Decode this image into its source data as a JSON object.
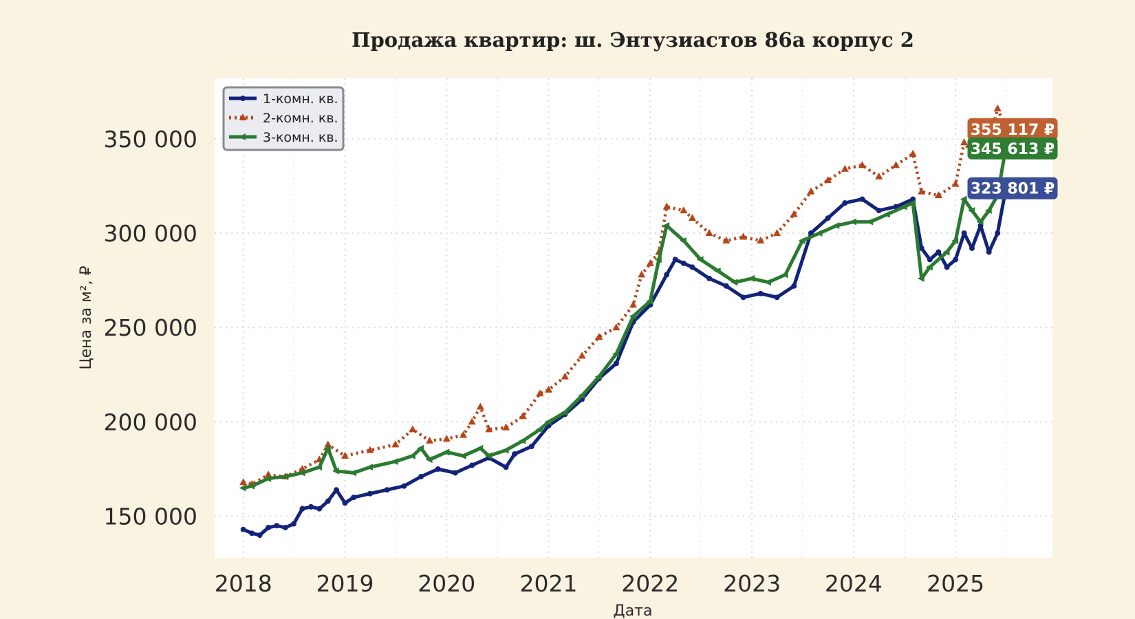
{
  "chart_data": {
    "type": "line",
    "title": "Продажа квартир: ш. Энтузиастов 86а корпус 2",
    "xlabel": "Дата",
    "ylabel": "Цена за м², ₽",
    "xlim": [
      "2017-09-20",
      "2025-12-15"
    ],
    "ylim": [
      128000,
      382000
    ],
    "x_ticks": [
      "2018",
      "2019",
      "2020",
      "2021",
      "2022",
      "2023",
      "2024",
      "2025"
    ],
    "y_ticks": [
      {
        "value": 150000,
        "label": "150 000"
      },
      {
        "value": 200000,
        "label": "200 000"
      },
      {
        "value": 250000,
        "label": "250 000"
      },
      {
        "value": 300000,
        "label": "300 000"
      },
      {
        "value": 350000,
        "label": "350 000"
      }
    ],
    "grid": true,
    "legend": "top-left",
    "series": [
      {
        "name": "1-комн. кв.",
        "color": "#13237a",
        "style": "solid",
        "marker": "dot",
        "end_label": "323 801 ₽",
        "end_label_color": "#3a4e98",
        "points": [
          [
            "2018-01-01",
            143000
          ],
          [
            "2018-02-01",
            141000
          ],
          [
            "2018-03-01",
            140000
          ],
          [
            "2018-04-01",
            144000
          ],
          [
            "2018-05-01",
            145000
          ],
          [
            "2018-06-01",
            144000
          ],
          [
            "2018-07-01",
            146000
          ],
          [
            "2018-08-01",
            154000
          ],
          [
            "2018-09-01",
            155000
          ],
          [
            "2018-10-01",
            154000
          ],
          [
            "2018-11-01",
            158000
          ],
          [
            "2018-12-01",
            164000
          ],
          [
            "2019-01-01",
            157000
          ],
          [
            "2019-02-01",
            160000
          ],
          [
            "2019-04-01",
            162000
          ],
          [
            "2019-06-01",
            164000
          ],
          [
            "2019-08-01",
            166000
          ],
          [
            "2019-10-01",
            171000
          ],
          [
            "2019-12-01",
            175000
          ],
          [
            "2020-02-01",
            173000
          ],
          [
            "2020-04-01",
            177000
          ],
          [
            "2020-06-01",
            181000
          ],
          [
            "2020-08-01",
            176000
          ],
          [
            "2020-09-01",
            183000
          ],
          [
            "2020-11-01",
            187000
          ],
          [
            "2021-01-01",
            198000
          ],
          [
            "2021-03-01",
            204000
          ],
          [
            "2021-05-01",
            212000
          ],
          [
            "2021-07-01",
            223000
          ],
          [
            "2021-09-01",
            231000
          ],
          [
            "2021-11-01",
            253000
          ],
          [
            "2022-01-01",
            262000
          ],
          [
            "2022-03-01",
            278000
          ],
          [
            "2022-04-01",
            286000
          ],
          [
            "2022-05-01",
            284000
          ],
          [
            "2022-06-01",
            282000
          ],
          [
            "2022-08-01",
            276000
          ],
          [
            "2022-10-01",
            272000
          ],
          [
            "2022-12-01",
            266000
          ],
          [
            "2023-02-01",
            268000
          ],
          [
            "2023-04-01",
            266000
          ],
          [
            "2023-06-01",
            272000
          ],
          [
            "2023-08-01",
            300000
          ],
          [
            "2023-10-01",
            308000
          ],
          [
            "2023-12-01",
            316000
          ],
          [
            "2024-02-01",
            318000
          ],
          [
            "2024-04-01",
            312000
          ],
          [
            "2024-06-01",
            314000
          ],
          [
            "2024-08-01",
            318000
          ],
          [
            "2024-09-01",
            292000
          ],
          [
            "2024-10-01",
            286000
          ],
          [
            "2024-11-01",
            290000
          ],
          [
            "2024-12-01",
            282000
          ],
          [
            "2025-01-01",
            286000
          ],
          [
            "2025-02-01",
            300000
          ],
          [
            "2025-03-01",
            292000
          ],
          [
            "2025-04-01",
            304000
          ],
          [
            "2025-05-01",
            290000
          ],
          [
            "2025-06-01",
            300000
          ],
          [
            "2025-07-01",
            323801
          ]
        ]
      },
      {
        "name": "2-комн. кв.",
        "color": "#b5461a",
        "style": "dotted",
        "marker": "triangle",
        "end_label": "355 117 ₽",
        "end_label_color": "#c06030",
        "points": [
          [
            "2018-01-01",
            168000
          ],
          [
            "2018-02-01",
            167000
          ],
          [
            "2018-04-01",
            172000
          ],
          [
            "2018-06-01",
            171000
          ],
          [
            "2018-08-01",
            175000
          ],
          [
            "2018-10-01",
            180000
          ],
          [
            "2018-11-01",
            188000
          ],
          [
            "2019-01-01",
            182000
          ],
          [
            "2019-04-01",
            185000
          ],
          [
            "2019-07-01",
            188000
          ],
          [
            "2019-09-01",
            196000
          ],
          [
            "2019-11-01",
            190000
          ],
          [
            "2020-01-01",
            191000
          ],
          [
            "2020-03-01",
            193000
          ],
          [
            "2020-04-01",
            200000
          ],
          [
            "2020-05-01",
            208000
          ],
          [
            "2020-06-01",
            196000
          ],
          [
            "2020-08-01",
            197000
          ],
          [
            "2020-10-01",
            203000
          ],
          [
            "2020-12-01",
            215000
          ],
          [
            "2021-01-01",
            217000
          ],
          [
            "2021-03-01",
            224000
          ],
          [
            "2021-05-01",
            235000
          ],
          [
            "2021-07-01",
            245000
          ],
          [
            "2021-09-01",
            250000
          ],
          [
            "2021-11-01",
            262000
          ],
          [
            "2021-12-01",
            278000
          ],
          [
            "2022-01-01",
            284000
          ],
          [
            "2022-02-01",
            290000
          ],
          [
            "2022-03-01",
            314000
          ],
          [
            "2022-05-01",
            312000
          ],
          [
            "2022-06-01",
            308000
          ],
          [
            "2022-08-01",
            300000
          ],
          [
            "2022-10-01",
            296000
          ],
          [
            "2022-12-01",
            298000
          ],
          [
            "2023-02-01",
            296000
          ],
          [
            "2023-04-01",
            300000
          ],
          [
            "2023-06-01",
            310000
          ],
          [
            "2023-08-01",
            322000
          ],
          [
            "2023-10-01",
            328000
          ],
          [
            "2023-12-01",
            334000
          ],
          [
            "2024-02-01",
            336000
          ],
          [
            "2024-04-01",
            330000
          ],
          [
            "2024-06-01",
            336000
          ],
          [
            "2024-08-01",
            342000
          ],
          [
            "2024-09-01",
            322000
          ],
          [
            "2024-11-01",
            320000
          ],
          [
            "2025-01-01",
            326000
          ],
          [
            "2025-02-01",
            348000
          ],
          [
            "2025-03-01",
            342000
          ],
          [
            "2025-04-01",
            352000
          ],
          [
            "2025-05-01",
            348000
          ],
          [
            "2025-06-01",
            366000
          ],
          [
            "2025-07-01",
            355117
          ]
        ]
      },
      {
        "name": "3-комн. кв.",
        "color": "#2a7a30",
        "style": "solid",
        "marker": "tri-left",
        "end_label": "345 613 ₽",
        "end_label_color": "#2e7d32",
        "points": [
          [
            "2018-01-01",
            165000
          ],
          [
            "2018-02-01",
            166000
          ],
          [
            "2018-04-01",
            170000
          ],
          [
            "2018-06-01",
            171000
          ],
          [
            "2018-08-01",
            173000
          ],
          [
            "2018-10-01",
            176000
          ],
          [
            "2018-11-01",
            186000
          ],
          [
            "2018-12-01",
            174000
          ],
          [
            "2019-02-01",
            173000
          ],
          [
            "2019-04-01",
            176000
          ],
          [
            "2019-07-01",
            179000
          ],
          [
            "2019-09-01",
            182000
          ],
          [
            "2019-10-01",
            186000
          ],
          [
            "2019-11-01",
            180000
          ],
          [
            "2020-01-01",
            184000
          ],
          [
            "2020-03-01",
            182000
          ],
          [
            "2020-05-01",
            186000
          ],
          [
            "2020-06-01",
            182000
          ],
          [
            "2020-08-01",
            185000
          ],
          [
            "2020-10-01",
            190000
          ],
          [
            "2020-12-01",
            196000
          ],
          [
            "2021-01-01",
            200000
          ],
          [
            "2021-03-01",
            205000
          ],
          [
            "2021-05-01",
            214000
          ],
          [
            "2021-07-01",
            224000
          ],
          [
            "2021-09-01",
            236000
          ],
          [
            "2021-11-01",
            256000
          ],
          [
            "2022-01-01",
            264000
          ],
          [
            "2022-02-01",
            286000
          ],
          [
            "2022-03-01",
            304000
          ],
          [
            "2022-05-01",
            296000
          ],
          [
            "2022-07-01",
            286000
          ],
          [
            "2022-09-01",
            280000
          ],
          [
            "2022-11-01",
            274000
          ],
          [
            "2023-01-01",
            276000
          ],
          [
            "2023-03-01",
            274000
          ],
          [
            "2023-05-01",
            278000
          ],
          [
            "2023-07-01",
            296000
          ],
          [
            "2023-09-01",
            300000
          ],
          [
            "2023-11-01",
            304000
          ],
          [
            "2024-01-01",
            306000
          ],
          [
            "2024-03-01",
            306000
          ],
          [
            "2024-05-01",
            310000
          ],
          [
            "2024-07-01",
            314000
          ],
          [
            "2024-08-01",
            316000
          ],
          [
            "2024-09-01",
            276000
          ],
          [
            "2024-10-01",
            282000
          ],
          [
            "2024-12-01",
            290000
          ],
          [
            "2025-01-01",
            296000
          ],
          [
            "2025-02-01",
            318000
          ],
          [
            "2025-03-01",
            312000
          ],
          [
            "2025-04-01",
            306000
          ],
          [
            "2025-05-01",
            312000
          ],
          [
            "2025-06-01",
            320000
          ],
          [
            "2025-07-01",
            345613
          ]
        ]
      }
    ]
  }
}
